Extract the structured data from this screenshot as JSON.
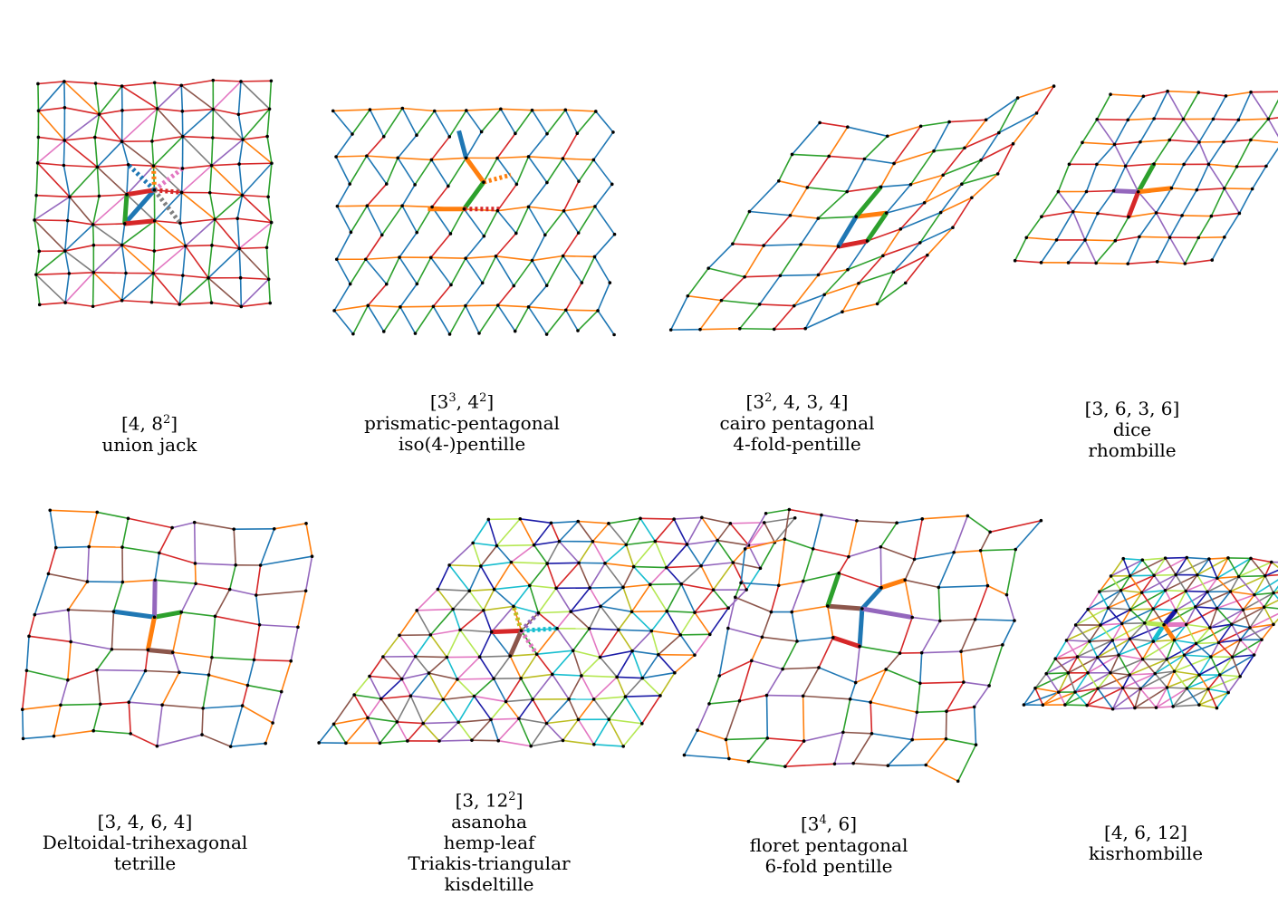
{
  "palette": [
    "#1f77b4",
    "#ff7f0e",
    "#2ca02c",
    "#d62728",
    "#9467bd",
    "#8c564b",
    "#e377c2",
    "#7f7f7f",
    "#bcbd22",
    "#17becf",
    "#b5e853",
    "#1a1aa6"
  ],
  "vertex_color": "#000000",
  "tilings": [
    {
      "id": "union-jack",
      "symbol": {
        "base": "[4, 8",
        "sup": "2",
        "close": "]"
      },
      "names": [
        "union jack"
      ],
      "type": "squares-diag",
      "colors": 8
    },
    {
      "id": "prismatic-pentagonal",
      "symbol": {
        "base": "[3",
        "sup": "3",
        "rest": ", 4",
        "sup2": "2",
        "close": "]"
      },
      "names": [
        "prismatic-pentagonal",
        "iso(4-)pentille"
      ],
      "type": "pentagon-prism",
      "colors": 4
    },
    {
      "id": "cairo-pentagonal",
      "symbol": {
        "base": "[3",
        "sup": "2",
        "close": ", 4, 3, 4]"
      },
      "names": [
        "cairo pentagonal",
        "4-fold-pentille"
      ],
      "type": "cairo",
      "colors": 4
    },
    {
      "id": "dice",
      "symbol": {
        "base": "[3, 6, 3, 6]"
      },
      "names": [
        "dice",
        "rhombille"
      ],
      "type": "rhombille",
      "colors": 6
    },
    {
      "id": "deltoidal-trihexagonal",
      "symbol": {
        "base": "[3, 4, 6, 4]"
      },
      "names": [
        "Deltoidal-trihexagonal",
        "tetrille"
      ],
      "type": "deltoidal",
      "colors": 6
    },
    {
      "id": "asanoha",
      "symbol": {
        "base": "[3, 12",
        "sup": "2",
        "close": "]"
      },
      "names": [
        "asanoha",
        "hemp-leaf",
        "Triakis-triangular",
        "kisdeltille"
      ],
      "type": "kisdeltille",
      "colors": 12
    },
    {
      "id": "floret-pentagonal",
      "symbol": {
        "base": "[3",
        "sup": "4",
        "close": ", 6]"
      },
      "names": [
        "floret pentagonal",
        "6-fold pentille"
      ],
      "type": "floret",
      "colors": 6
    },
    {
      "id": "kisrhombille",
      "symbol": {
        "base": "[4, 6, 12]"
      },
      "names": [
        "kisrhombille"
      ],
      "type": "kisrhombille",
      "colors": 12
    }
  ]
}
